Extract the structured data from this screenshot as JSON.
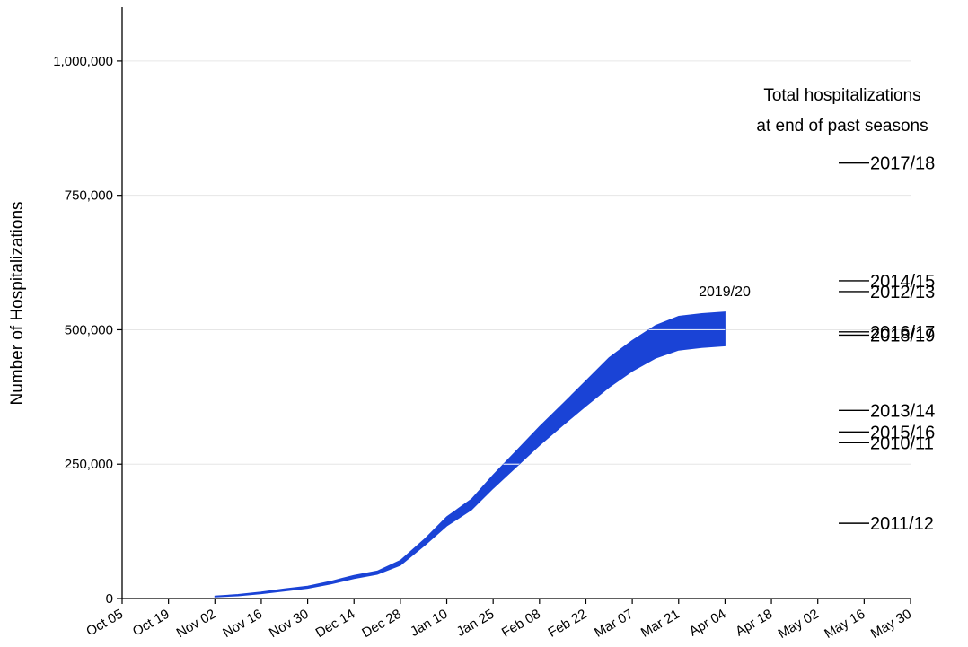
{
  "chart_data": {
    "type": "area",
    "title": "",
    "xlabel": "",
    "ylabel": "Number of Hospitalizations",
    "ylim": [
      0,
      1100000
    ],
    "yticks": [
      0,
      250000,
      500000,
      750000,
      1000000
    ],
    "ytick_labels": [
      "0",
      "250,000",
      "500,000",
      "750,000",
      "1,000,000"
    ],
    "grid": "horizontal",
    "x_ticks": [
      "Oct 05",
      "Oct 19",
      "Nov 02",
      "Nov 16",
      "Nov 30",
      "Dec 14",
      "Dec 28",
      "Jan 10",
      "Jan 25",
      "Feb 08",
      "Feb 22",
      "Mar 07",
      "Mar 21",
      "Apr 04",
      "Apr 18",
      "May 02",
      "May 16",
      "May 30"
    ],
    "series": [
      {
        "name": "2019/20",
        "color": "#1a43d6",
        "x": [
          "Nov 02",
          "Nov 09",
          "Nov 16",
          "Nov 23",
          "Nov 30",
          "Dec 07",
          "Dec 14",
          "Dec 21",
          "Dec 28",
          "Jan 04",
          "Jan 10",
          "Jan 18",
          "Jan 25",
          "Feb 01",
          "Feb 08",
          "Feb 15",
          "Feb 22",
          "Feb 29",
          "Mar 07",
          "Mar 14",
          "Mar 21",
          "Mar 28",
          "Apr 04"
        ],
        "lower": [
          3000,
          5000,
          9000,
          14000,
          19000,
          27000,
          37000,
          45000,
          62000,
          100000,
          135000,
          165000,
          205000,
          245000,
          285000,
          322000,
          358000,
          393000,
          423000,
          447000,
          462000,
          467000,
          470000
        ],
        "upper": [
          4500,
          7500,
          12000,
          18000,
          23000,
          32000,
          43000,
          51000,
          71000,
          112000,
          152000,
          185000,
          230000,
          275000,
          320000,
          362000,
          405000,
          448000,
          480000,
          508000,
          525000,
          530000,
          533000
        ]
      }
    ],
    "reference_header": [
      "Total hospitalizations",
      "at end of past seasons"
    ],
    "past_seasons": [
      {
        "season": "2017/18",
        "value": 810000
      },
      {
        "season": "2014/15",
        "value": 591000
      },
      {
        "season": "2012/13",
        "value": 571000
      },
      {
        "season": "2016/17",
        "value": 496000
      },
      {
        "season": "2018/19",
        "value": 490000
      },
      {
        "season": "2013/14",
        "value": 350000
      },
      {
        "season": "2015/16",
        "value": 310000
      },
      {
        "season": "2010/11",
        "value": 290000
      },
      {
        "season": "2011/12",
        "value": 140000
      }
    ]
  }
}
